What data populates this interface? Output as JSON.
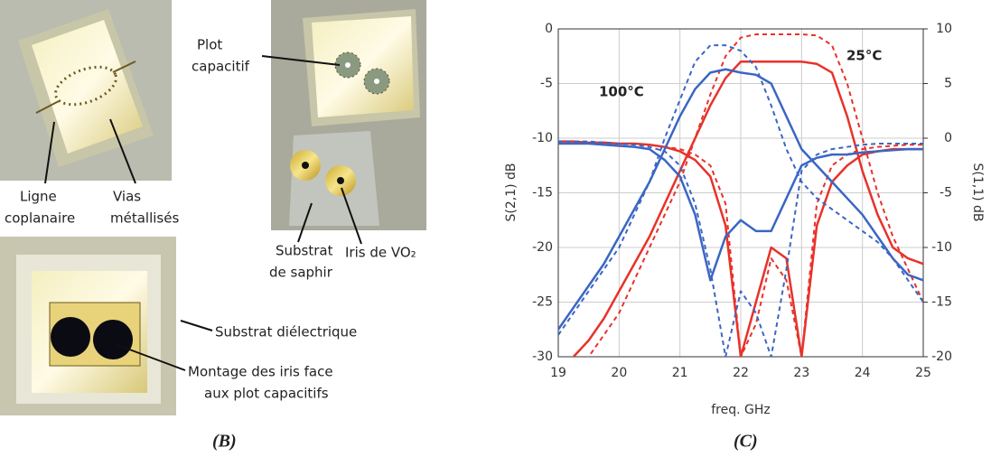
{
  "photos": {
    "labels": [
      "Ligne",
      "coplanaire",
      "Vias",
      "métallisés",
      "Plot",
      "capacitif",
      "Substrat",
      "de saphir",
      "Iris de VO₂",
      "Substrat diélectrique",
      "Montage des iris face",
      "aux plot capacitifs"
    ]
  },
  "captions": [
    "(B)",
    "(C)"
  ],
  "chart_data": {
    "type": "line",
    "xlabel": "freq. GHz",
    "ylabel": "S(2,1) dB",
    "y2label": "S(1,1) dB",
    "x": [
      19,
      19.25,
      19.5,
      19.75,
      20,
      20.25,
      20.5,
      20.75,
      21,
      21.25,
      21.5,
      21.75,
      22,
      22.25,
      22.5,
      22.75,
      23,
      23.25,
      23.5,
      23.75,
      24,
      24.25,
      24.5,
      24.75,
      25
    ],
    "xlim": [
      19,
      25
    ],
    "xticks": [
      19,
      20,
      21,
      22,
      23,
      24,
      25
    ],
    "ylim": [
      -30,
      0
    ],
    "yticks": [
      0,
      -5,
      -10,
      -15,
      -20,
      -25,
      -30
    ],
    "y2lim": [
      -20,
      10
    ],
    "y2ticks": [
      10,
      5,
      0,
      -5,
      -10,
      -15,
      -20
    ],
    "grid": true,
    "annotations": [
      {
        "text": "100°C",
        "color": "#3a66c4"
      },
      {
        "text": "25°C",
        "color": "#e8322a"
      }
    ],
    "series": [
      {
        "color": "#e8322a",
        "style": "solid",
        "values": [
          -32,
          -30,
          -28.5,
          -26.5,
          -24,
          -21.5,
          -19,
          -16,
          -13,
          -10,
          -7,
          -4.5,
          -3,
          -3,
          -3,
          -3,
          -3,
          -3.2,
          -4,
          -8,
          -13,
          -17,
          -20,
          -21,
          -21.5
        ]
      },
      {
        "color": "#e8322a",
        "style": "dashed",
        "values": [
          -34,
          -32,
          -30,
          -28,
          -26,
          -23,
          -20,
          -17,
          -14,
          -10,
          -6,
          -2.5,
          -0.8,
          -0.5,
          -0.5,
          -0.5,
          -0.5,
          -0.6,
          -1.5,
          -5,
          -10,
          -15,
          -19,
          -22,
          -25
        ]
      },
      {
        "color": "#e8322a",
        "style": "solid",
        "axis": "y2",
        "values": [
          -0.3,
          -0.3,
          -0.4,
          -0.4,
          -0.5,
          -0.5,
          -0.6,
          -0.8,
          -1.2,
          -2,
          -3.5,
          -8,
          -20,
          -15,
          -10,
          -11,
          -20,
          -8,
          -4,
          -2.5,
          -1.5,
          -1.2,
          -1,
          -1,
          -1
        ]
      },
      {
        "color": "#e8322a",
        "style": "dashed",
        "axis": "y2",
        "values": [
          -0.3,
          -0.3,
          -0.4,
          -0.4,
          -0.5,
          -0.5,
          -0.6,
          -0.8,
          -1,
          -1.5,
          -2.5,
          -6,
          -20,
          -17,
          -11,
          -13,
          -20,
          -6,
          -2.5,
          -1.5,
          -1,
          -0.8,
          -0.7,
          -0.6,
          -0.6
        ]
      },
      {
        "color": "#3a66c4",
        "style": "solid",
        "values": [
          -27.5,
          -25.5,
          -23.5,
          -21.5,
          -19,
          -16.5,
          -14,
          -11,
          -8,
          -5.5,
          -4,
          -3.7,
          -4,
          -4.2,
          -5,
          -8,
          -11,
          -12.5,
          -14,
          -15.5,
          -17,
          -19,
          -21,
          -22.5,
          -23
        ]
      },
      {
        "color": "#3a66c4",
        "style": "dashed",
        "values": [
          -28,
          -26,
          -24,
          -22,
          -20,
          -17,
          -14,
          -10,
          -6.5,
          -3,
          -1.5,
          -1.5,
          -2,
          -3.5,
          -7,
          -11,
          -14,
          -15.5,
          -16.5,
          -17.5,
          -18.5,
          -19.5,
          -21,
          -23,
          -25
        ]
      },
      {
        "color": "#3a66c4",
        "style": "solid",
        "axis": "y2",
        "values": [
          -0.5,
          -0.5,
          -0.5,
          -0.6,
          -0.7,
          -0.8,
          -1,
          -2,
          -3.5,
          -7,
          -13,
          -9,
          -7.5,
          -8.5,
          -8.5,
          -5.5,
          -2.5,
          -1.8,
          -1.5,
          -1.5,
          -1.3,
          -1.2,
          -1.1,
          -1,
          -1
        ]
      },
      {
        "color": "#3a66c4",
        "style": "dashed",
        "axis": "y2",
        "values": [
          -0.3,
          -0.3,
          -0.3,
          -0.4,
          -0.5,
          -0.6,
          -0.8,
          -1.2,
          -2.5,
          -6,
          -12,
          -20,
          -14,
          -16,
          -20,
          -12,
          -3,
          -1.5,
          -1,
          -0.8,
          -0.6,
          -0.5,
          -0.5,
          -0.5,
          -0.5
        ]
      }
    ]
  }
}
